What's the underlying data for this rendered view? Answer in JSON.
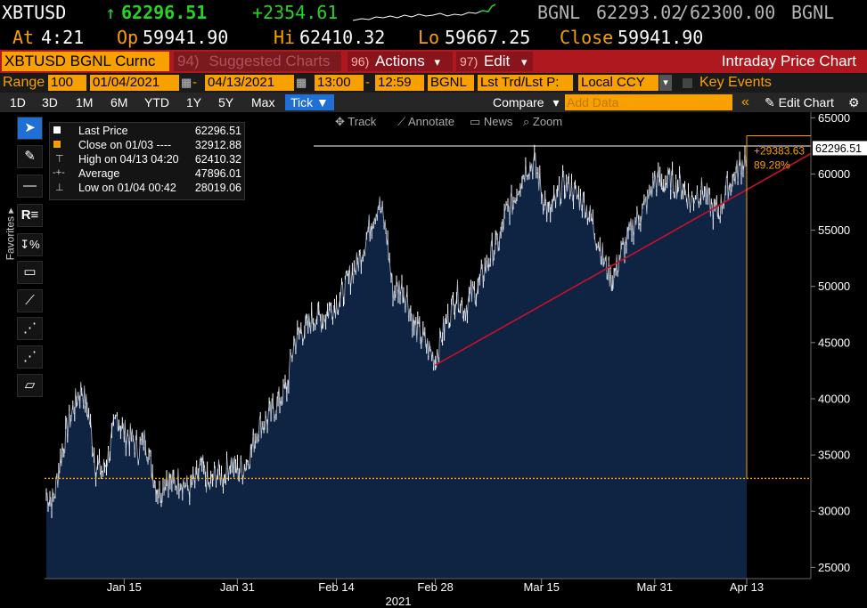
{
  "quote": {
    "ticker": "XBTUSD",
    "arrow": "↑",
    "last": "62296.51",
    "change": "+2354.61",
    "source1": "BGNL",
    "bid": "62293.02",
    "sep": "/",
    "ask": "62300.00",
    "source2": "BGNL",
    "at_label": "At",
    "at_time": "4:21",
    "op_label": "Op",
    "op_value": "59941.90",
    "hi_label": "Hi",
    "hi_value": "62410.32",
    "lo_label": "Lo",
    "lo_value": "59667.25",
    "close_label": "Close",
    "close_value": "59941.90"
  },
  "toolbar": {
    "security": "XBTUSD BGNL Curnc",
    "suggested_num": "94)",
    "suggested": "Suggested Charts",
    "actions_num": "96)",
    "actions": "Actions",
    "edit_num": "97)",
    "edit": "Edit",
    "title": "Intraday Price Chart",
    "caret": "▾"
  },
  "range": {
    "label": "Range",
    "bars": "100",
    "start": "01/04/2021",
    "dash": "-",
    "end": "04/13/2021",
    "t_start": "13:00",
    "t_end": "12:59",
    "source": "BGNL",
    "field": "Lst Trd/Lst P:",
    "ccy": "Local CCY",
    "events": "Key Events"
  },
  "periods": {
    "items": [
      "1D",
      "3D",
      "1M",
      "6M",
      "YTD",
      "1Y",
      "5Y",
      "Max"
    ],
    "active": "Tick",
    "active_caret": "▼",
    "compare": "Compare",
    "compare_caret": "▾",
    "add_data": "Add Data",
    "chevrons": "«",
    "edit_chart": "Edit Chart",
    "edit_chart_icon": "✎",
    "settings_icon": "⚙"
  },
  "chart_tools": {
    "track": "Track",
    "annotate": "Annotate",
    "news": "News",
    "zoom": "Zoom"
  },
  "left_tools": {
    "favorites": "Favorites",
    "icons": [
      "cursor-arrow-icon",
      "pen-icon",
      "horizontal-line-icon",
      "text-icon",
      "percent-arrow-icon",
      "rectangle-icon",
      "trend-line-icon",
      "channel-line-icon",
      "ray-line-icon",
      "fibonacci-icon"
    ]
  },
  "legend": [
    {
      "name": "Last Price",
      "value": "62296.51",
      "color": "#ffffff"
    },
    {
      "name": "Close on 01/03 ----",
      "value": "32912.88",
      "color": "#f8a000"
    },
    {
      "name": "High on 04/13 04:20",
      "value": "62410.32",
      "color": "#ffffff"
    },
    {
      "name": "Average",
      "value": "47896.01",
      "color": "#ffffff"
    },
    {
      "name": "Low on 01/04 00:42",
      "value": "28019.06",
      "color": "#ffffff"
    }
  ],
  "annotations": {
    "last_price_tag": "62296.51",
    "change_abs": "+29383.63",
    "change_pct": "89.28%"
  },
  "chart_data": {
    "type": "area",
    "series": [
      {
        "name": "Last Price",
        "x": [
          "01/04",
          "01/05",
          "01/06",
          "01/07",
          "01/08",
          "01/09",
          "01/10",
          "01/11",
          "01/12",
          "01/13",
          "01/14",
          "01/15",
          "01/16",
          "01/17",
          "01/18",
          "01/19",
          "01/20",
          "01/21",
          "01/22",
          "01/23",
          "01/24",
          "01/25",
          "01/26",
          "01/27",
          "01/28",
          "01/29",
          "01/30",
          "01/31",
          "02/01",
          "02/02",
          "02/03",
          "02/04",
          "02/05",
          "02/06",
          "02/07",
          "02/08",
          "02/09",
          "02/10",
          "02/11",
          "02/12",
          "02/13",
          "02/14",
          "02/15",
          "02/16",
          "02/17",
          "02/18",
          "02/19",
          "02/20",
          "02/21",
          "02/22",
          "02/23",
          "02/24",
          "02/25",
          "02/26",
          "02/27",
          "02/28",
          "03/01",
          "03/02",
          "03/03",
          "03/04",
          "03/05",
          "03/06",
          "03/07",
          "03/08",
          "03/09",
          "03/10",
          "03/11",
          "03/12",
          "03/13",
          "03/14",
          "03/15",
          "03/16",
          "03/17",
          "03/18",
          "03/19",
          "03/20",
          "03/21",
          "03/22",
          "03/23",
          "03/24",
          "03/25",
          "03/26",
          "03/27",
          "03/28",
          "03/29",
          "03/30",
          "03/31",
          "04/01",
          "04/02",
          "04/03",
          "04/04",
          "04/05",
          "04/06",
          "04/07",
          "04/08",
          "04/09",
          "04/10",
          "04/11",
          "04/12",
          "04/13"
        ],
        "values": [
          31500,
          31000,
          34500,
          37500,
          39500,
          41000,
          38500,
          34000,
          33500,
          35500,
          38500,
          37000,
          36500,
          35500,
          36500,
          33500,
          31500,
          33000,
          32500,
          33000,
          32000,
          32500,
          34000,
          32000,
          33500,
          33000,
          34500,
          33500,
          34000,
          35500,
          37500,
          38000,
          39000,
          40000,
          41000,
          45000,
          46000,
          46500,
          47500,
          47000,
          48000,
          48500,
          49500,
          51000,
          52000,
          54000,
          56000,
          57500,
          55000,
          49500,
          50000,
          49000,
          46500,
          45500,
          44500,
          43500,
          46000,
          47500,
          49500,
          48000,
          49000,
          50000,
          51500,
          53000,
          54000,
          56500,
          57500,
          59500,
          60800,
          61000,
          58500,
          56500,
          57500,
          59000,
          59000,
          58000,
          57500,
          56000,
          54000,
          52000,
          50500,
          52500,
          54000,
          55500,
          56500,
          57500,
          59500,
          59000,
          59500,
          59000,
          59000,
          57500,
          58500,
          58500,
          57000,
          56500,
          58500,
          59500,
          60500,
          61800
        ]
      },
      {
        "name": "Close on 01/03",
        "values": [
          32912.88
        ]
      }
    ],
    "x_ticks": [
      "Jan 15",
      "Jan 31",
      "Feb 14",
      "Feb 28",
      "Mar 15",
      "Mar 31",
      "Apr 13"
    ],
    "x_year": "2021",
    "y_ticks": [
      "25000",
      "30000",
      "35000",
      "40000",
      "45000",
      "50000",
      "55000",
      "60000",
      "65000"
    ],
    "ylim": [
      24000,
      65500
    ],
    "high": 62410.32,
    "low": 28019.06,
    "reference": 32912.88,
    "trendline": [
      {
        "x": "02/28",
        "y": 43000
      },
      {
        "x": "04/13",
        "y": 58600
      }
    ],
    "colors": {
      "area_fill": "#0f2342",
      "line": "#ffffff",
      "reference": "#f8a000",
      "trend": "#c8102e"
    }
  }
}
